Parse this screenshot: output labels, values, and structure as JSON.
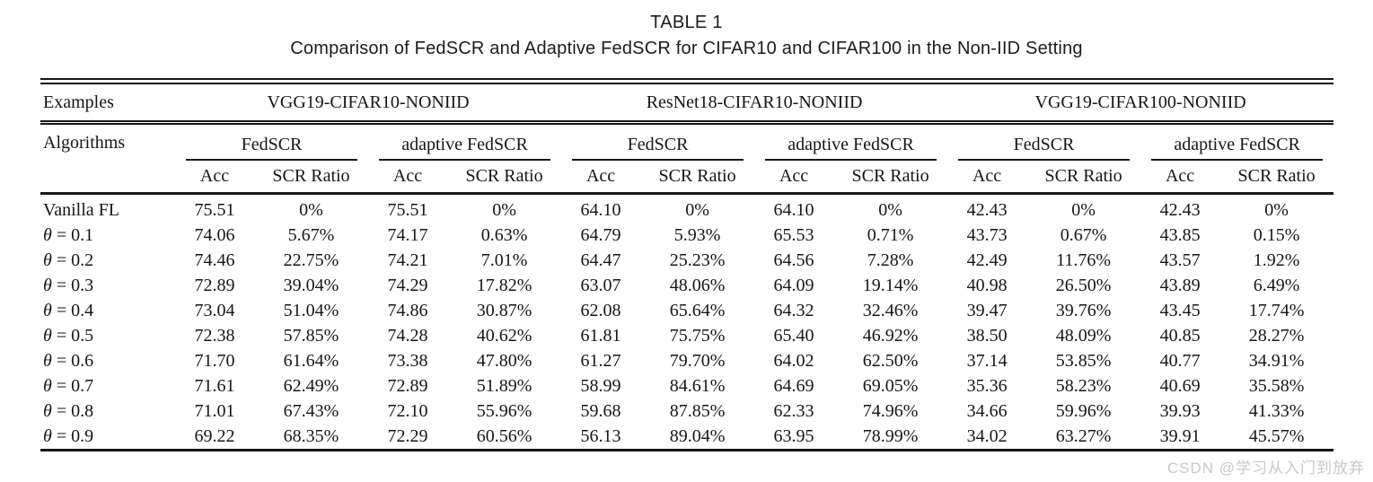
{
  "paper": {
    "table_label": "TABLE 1",
    "caption": "Comparison of FedSCR and Adaptive FedSCR for CIFAR10 and CIFAR100 in the Non-IID Setting",
    "watermark": "CSDN @学习从入门到放弃"
  },
  "table": {
    "examples_label": "Examples",
    "algorithms_label": "Algorithms",
    "examples": [
      "VGG19-CIFAR10-NONIID",
      "ResNet18-CIFAR10-NONIID",
      "VGG19-CIFAR100-NONIID"
    ],
    "methods": [
      "FedSCR",
      "adaptive FedSCR",
      "FedSCR",
      "adaptive FedSCR",
      "FedSCR",
      "adaptive FedSCR"
    ],
    "metric_headers": [
      "Acc",
      "SCR Ratio"
    ],
    "rows": [
      {
        "label": "Vanilla FL",
        "cells": [
          "75.51",
          "0%",
          "75.51",
          "0%",
          "64.10",
          "0%",
          "64.10",
          "0%",
          "42.43",
          "0%",
          "42.43",
          "0%"
        ]
      },
      {
        "label": "θ = 0.1",
        "cells": [
          "74.06",
          "5.67%",
          "74.17",
          "0.63%",
          "64.79",
          "5.93%",
          "65.53",
          "0.71%",
          "43.73",
          "0.67%",
          "43.85",
          "0.15%"
        ]
      },
      {
        "label": "θ = 0.2",
        "cells": [
          "74.46",
          "22.75%",
          "74.21",
          "7.01%",
          "64.47",
          "25.23%",
          "64.56",
          "7.28%",
          "42.49",
          "11.76%",
          "43.57",
          "1.92%"
        ]
      },
      {
        "label": "θ = 0.3",
        "cells": [
          "72.89",
          "39.04%",
          "74.29",
          "17.82%",
          "63.07",
          "48.06%",
          "64.09",
          "19.14%",
          "40.98",
          "26.50%",
          "43.89",
          "6.49%"
        ]
      },
      {
        "label": "θ = 0.4",
        "cells": [
          "73.04",
          "51.04%",
          "74.86",
          "30.87%",
          "62.08",
          "65.64%",
          "64.32",
          "32.46%",
          "39.47",
          "39.76%",
          "43.45",
          "17.74%"
        ]
      },
      {
        "label": "θ = 0.5",
        "cells": [
          "72.38",
          "57.85%",
          "74.28",
          "40.62%",
          "61.81",
          "75.75%",
          "65.40",
          "46.92%",
          "38.50",
          "48.09%",
          "40.85",
          "28.27%"
        ]
      },
      {
        "label": "θ = 0.6",
        "cells": [
          "71.70",
          "61.64%",
          "73.38",
          "47.80%",
          "61.27",
          "79.70%",
          "64.02",
          "62.50%",
          "37.14",
          "53.85%",
          "40.77",
          "34.91%"
        ]
      },
      {
        "label": "θ = 0.7",
        "cells": [
          "71.61",
          "62.49%",
          "72.89",
          "51.89%",
          "58.99",
          "84.61%",
          "64.69",
          "69.05%",
          "35.36",
          "58.23%",
          "40.69",
          "35.58%"
        ]
      },
      {
        "label": "θ = 0.8",
        "cells": [
          "71.01",
          "67.43%",
          "72.10",
          "55.96%",
          "59.68",
          "87.85%",
          "62.33",
          "74.96%",
          "34.66",
          "59.96%",
          "39.93",
          "41.33%"
        ]
      },
      {
        "label": "θ = 0.9",
        "cells": [
          "69.22",
          "68.35%",
          "72.29",
          "60.56%",
          "56.13",
          "89.04%",
          "63.95",
          "78.99%",
          "34.02",
          "63.27%",
          "39.91",
          "45.57%"
        ]
      }
    ]
  }
}
